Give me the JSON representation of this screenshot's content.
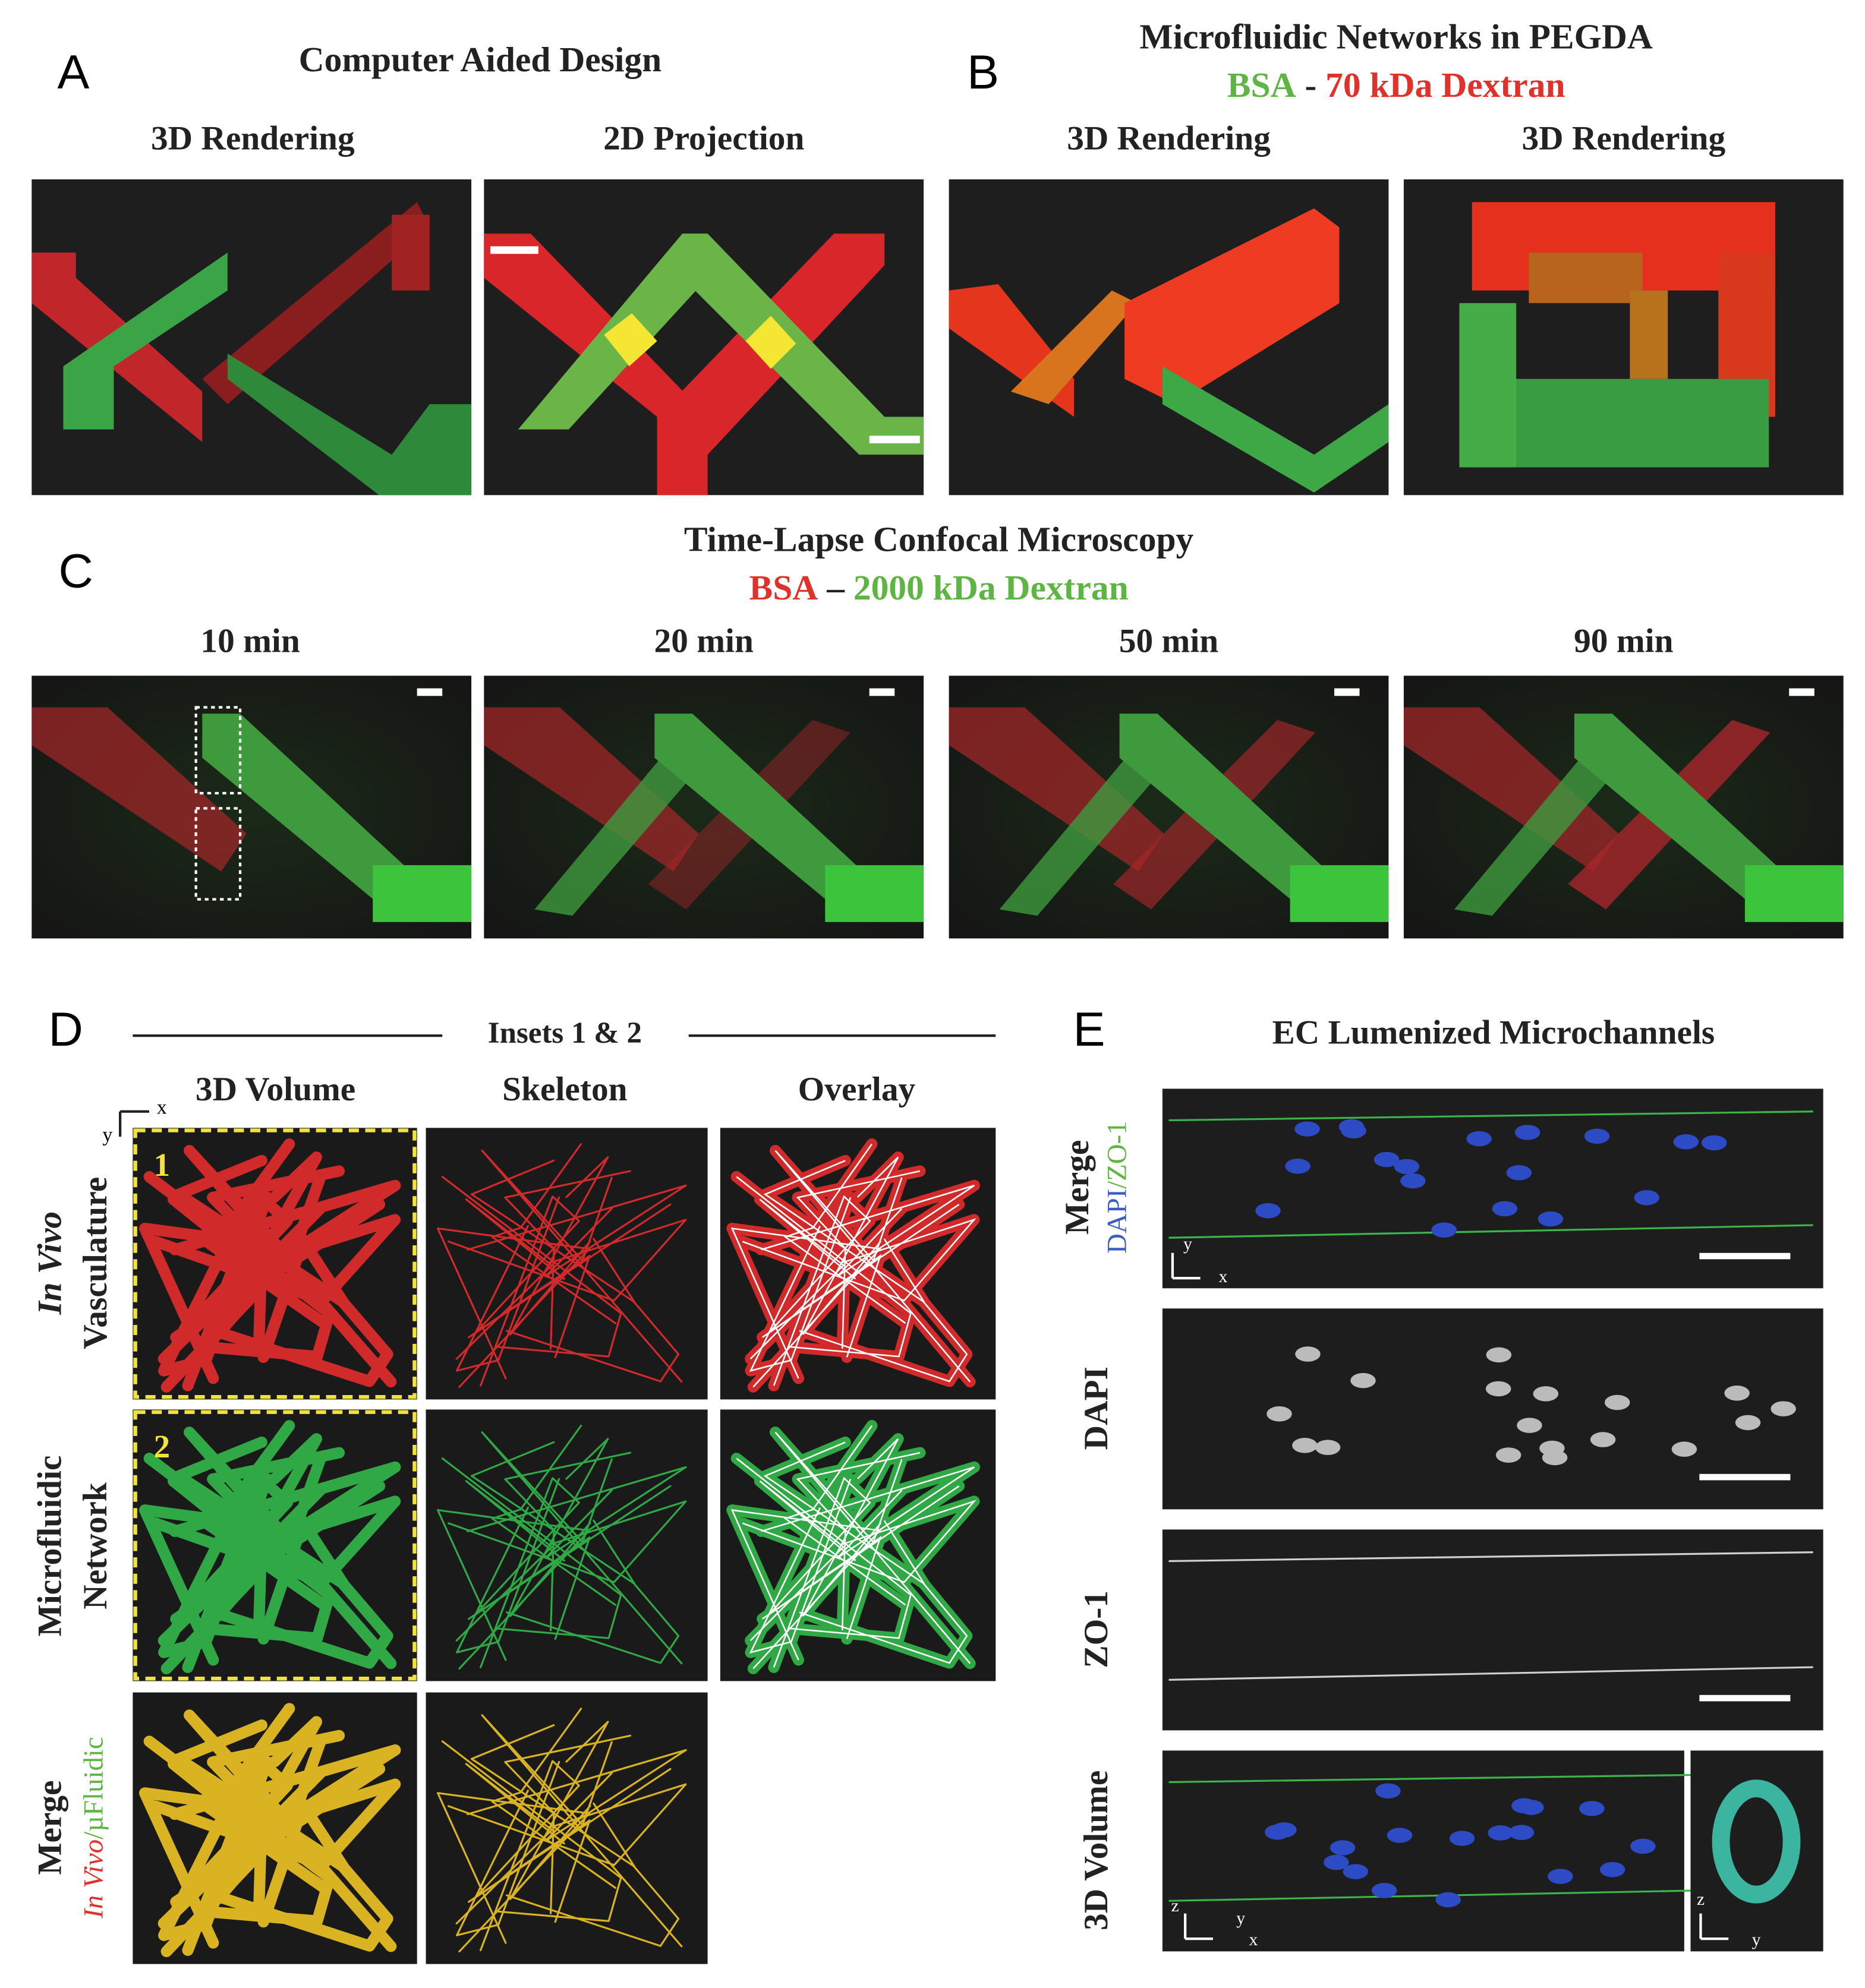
{
  "panels": [
    {
      "label": "A",
      "title": "Computer Aided Design",
      "captions": [
        "3D Rendering",
        "2D Projection"
      ]
    },
    {
      "label": "B",
      "title": "Microfluidic Networks in PEGDA",
      "legend": [
        "BSA",
        "-",
        "70 kDa Dextran"
      ],
      "captions": [
        "3D Rendering",
        "3D Rendering"
      ]
    },
    {
      "label": "C",
      "title": "Time-Lapse Confocal Microscopy",
      "legend": [
        "BSA",
        "–",
        "2000 kDa Dextran"
      ],
      "captions": [
        "10 min",
        "20 min",
        "50 min",
        "90 min"
      ]
    },
    {
      "label": "D",
      "title": "Insets 1 & 2",
      "columns": [
        "3D Volume",
        "Skeleton",
        "Overlay"
      ],
      "row_labels": [
        [
          "In Vivo",
          "Vasculature"
        ],
        [
          "Microfluidic",
          "Network"
        ],
        [
          "Merge"
        ]
      ],
      "merge_legend": [
        "In Vivo",
        "/",
        "µFluidic"
      ],
      "insets": [
        "1",
        "2"
      ],
      "axes": [
        "x",
        "y"
      ]
    },
    {
      "label": "E",
      "title": "EC Lumenized Microchannels",
      "row_labels": [
        "Merge",
        "DAPI",
        "ZO-1",
        "3D Volume"
      ],
      "merge_legend": [
        "DAPI",
        "/",
        "ZO-1"
      ],
      "axes": [
        "x",
        "y",
        "z"
      ]
    }
  ]
}
